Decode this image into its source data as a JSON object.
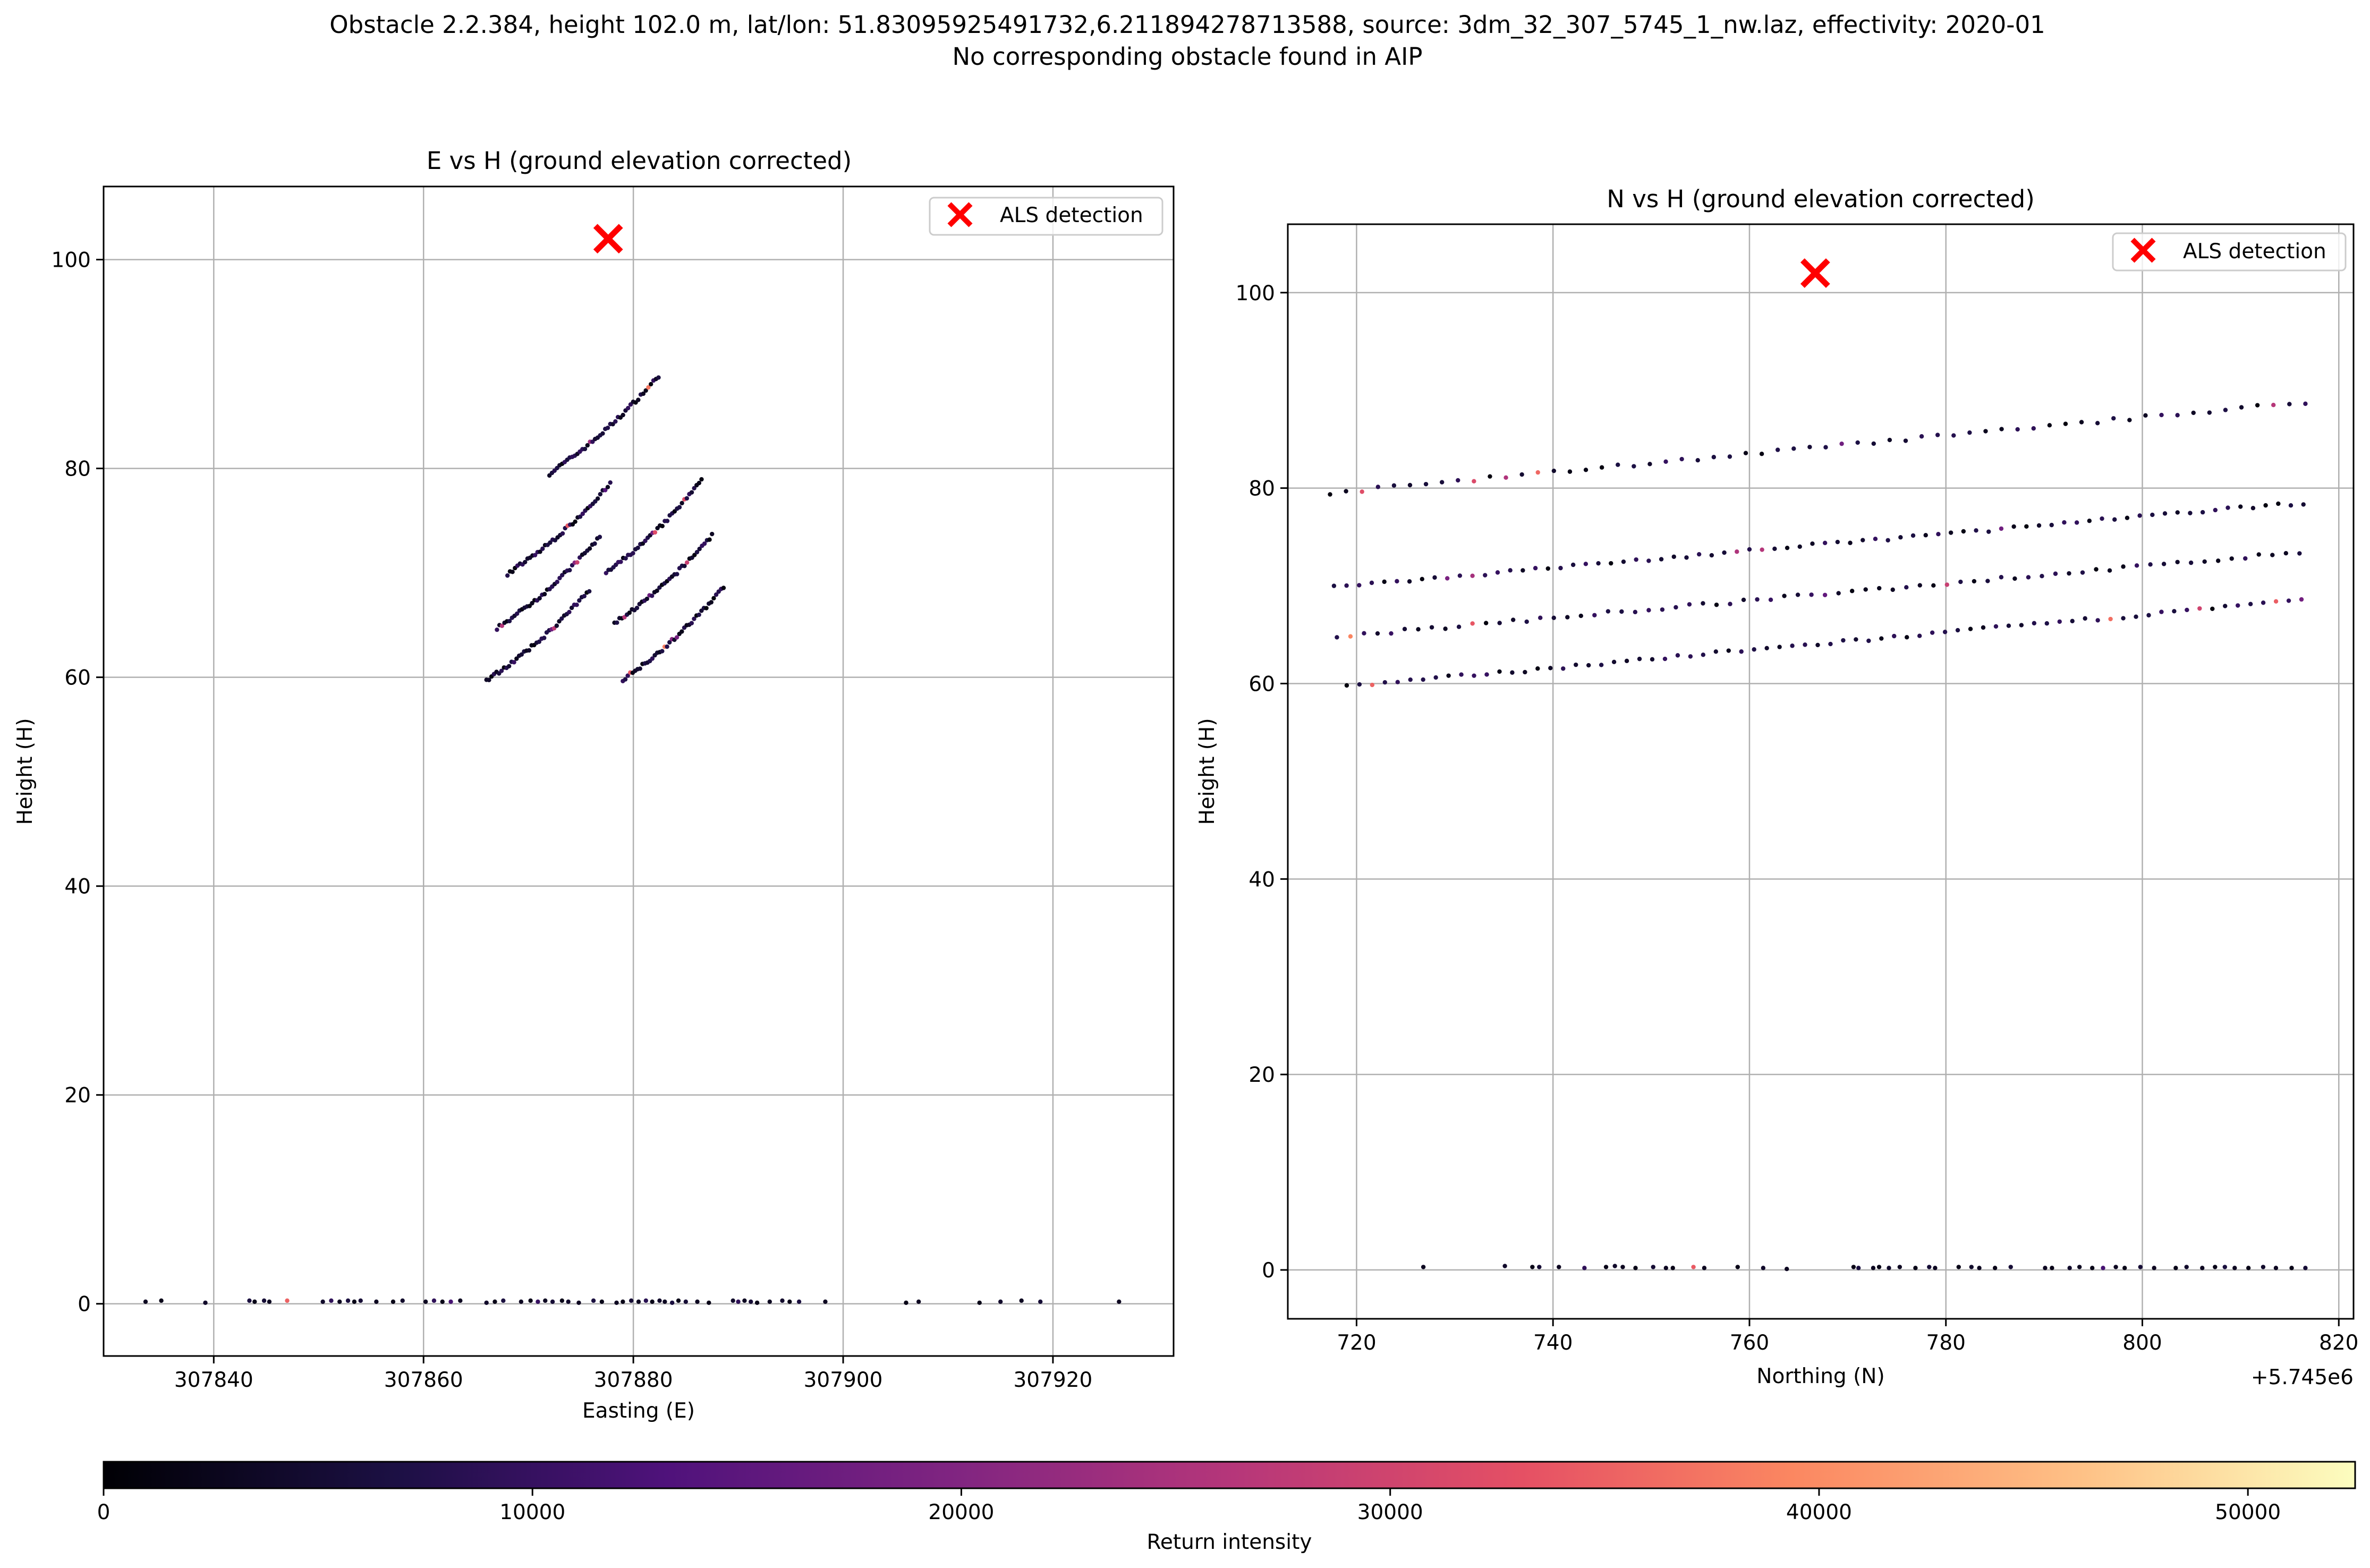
{
  "figure": {
    "suptitle_line1": "Obstacle 2.2.384, height 102.0 m, lat/lon: 51.83095925491732,6.211894278713588, source: 3dm_32_307_5745_1_nw.laz, effectivity: 2020-01",
    "suptitle_line2": "No corresponding obstacle found in AIP"
  },
  "colorbar": {
    "label": "Return intensity",
    "colormap": "magma",
    "range": [
      0,
      52500
    ],
    "ticks": [
      0,
      10000,
      20000,
      30000,
      40000,
      50000
    ],
    "tick_labels": [
      "0",
      "10000",
      "20000",
      "30000",
      "40000",
      "50000"
    ]
  },
  "chart_data": [
    {
      "type": "scatter",
      "title": "E vs H (ground elevation corrected)",
      "xlabel": "Easting (E)",
      "ylabel": "Height (H)",
      "xlim": [
        307829.5,
        307931.5
      ],
      "ylim": [
        -5,
        107
      ],
      "xticks": [
        307840,
        307860,
        307880,
        307900,
        307920
      ],
      "xtick_labels": [
        "307840",
        "307860",
        "307880",
        "307900",
        "307920"
      ],
      "yticks": [
        0,
        20,
        40,
        60,
        80,
        100
      ],
      "ytick_labels": [
        "0",
        "20",
        "40",
        "60",
        "80",
        "100"
      ],
      "offset_label": "",
      "grid": true,
      "legend": {
        "position": "top-right",
        "entries": [
          "ALS detection"
        ]
      },
      "detection": {
        "x": 307877.6,
        "y": 102.0,
        "color": "#ff0000",
        "marker": "x",
        "label": "ALS detection"
      },
      "point_color_scale": "Return intensity",
      "ground_points": [
        [
          307833.5,
          0.2,
          3000
        ],
        [
          307835.0,
          0.3,
          2000
        ],
        [
          307839.2,
          0.1,
          4000
        ],
        [
          307843.4,
          0.3,
          6000
        ],
        [
          307843.9,
          0.2,
          2000
        ],
        [
          307844.8,
          0.3,
          5000
        ],
        [
          307845.3,
          0.2,
          3000
        ],
        [
          307847.0,
          0.3,
          35000
        ],
        [
          307850.4,
          0.2,
          4000
        ],
        [
          307851.2,
          0.3,
          9000
        ],
        [
          307852.0,
          0.2,
          3000
        ],
        [
          307852.8,
          0.3,
          6000
        ],
        [
          307853.4,
          0.2,
          2000
        ],
        [
          307854.0,
          0.3,
          5000
        ],
        [
          307855.5,
          0.2,
          3000
        ],
        [
          307857.1,
          0.2,
          2000
        ],
        [
          307858.0,
          0.3,
          4000
        ],
        [
          307860.2,
          0.2,
          3000
        ],
        [
          307861.0,
          0.3,
          9000
        ],
        [
          307861.8,
          0.2,
          2000
        ],
        [
          307862.6,
          0.2,
          12000
        ],
        [
          307863.5,
          0.3,
          3000
        ],
        [
          307866.0,
          0.1,
          4000
        ],
        [
          307866.8,
          0.2,
          2000
        ],
        [
          307867.6,
          0.3,
          6000
        ],
        [
          307869.3,
          0.2,
          3000
        ],
        [
          307870.2,
          0.3,
          2000
        ],
        [
          307870.9,
          0.2,
          10000
        ],
        [
          307871.6,
          0.3,
          3000
        ],
        [
          307872.3,
          0.2,
          5000
        ],
        [
          307873.2,
          0.3,
          2000
        ],
        [
          307873.8,
          0.2,
          4000
        ],
        [
          307874.8,
          0.1,
          3000
        ],
        [
          307876.2,
          0.3,
          6000
        ],
        [
          307877.0,
          0.2,
          2000
        ],
        [
          307878.4,
          0.1,
          3000
        ],
        [
          307879.0,
          0.2,
          2000
        ],
        [
          307879.8,
          0.3,
          5000
        ],
        [
          307880.5,
          0.2,
          3000
        ],
        [
          307881.2,
          0.3,
          8000
        ],
        [
          307881.8,
          0.2,
          2000
        ],
        [
          307882.5,
          0.3,
          4000
        ],
        [
          307883.0,
          0.2,
          3000
        ],
        [
          307883.7,
          0.1,
          6000
        ],
        [
          307884.3,
          0.3,
          2000
        ],
        [
          307885.0,
          0.2,
          5000
        ],
        [
          307886.1,
          0.2,
          3000
        ],
        [
          307887.2,
          0.1,
          2000
        ],
        [
          307889.5,
          0.3,
          4000
        ],
        [
          307890.0,
          0.2,
          9000
        ],
        [
          307890.6,
          0.3,
          3000
        ],
        [
          307891.2,
          0.2,
          5000
        ],
        [
          307891.8,
          0.1,
          2000
        ],
        [
          307893.0,
          0.2,
          3000
        ],
        [
          307894.2,
          0.3,
          4000
        ],
        [
          307894.9,
          0.2,
          2000
        ],
        [
          307895.8,
          0.2,
          6000
        ],
        [
          307898.3,
          0.2,
          3000
        ],
        [
          307906.0,
          0.1,
          2000
        ],
        [
          307907.2,
          0.2,
          3000
        ],
        [
          307913.0,
          0.1,
          2000
        ],
        [
          307915.0,
          0.2,
          4000
        ],
        [
          307917.0,
          0.3,
          3000
        ],
        [
          307918.8,
          0.2,
          5000
        ],
        [
          307926.3,
          0.2,
          3000
        ]
      ],
      "tower_lines": [
        {
          "e_from": 307872.0,
          "e_to": 307882.4,
          "h_from": 79.5,
          "h_to": 88.8,
          "n": 44
        },
        {
          "e_from": 307868.0,
          "e_to": 307877.8,
          "h_from": 69.9,
          "h_to": 78.5,
          "n": 42
        },
        {
          "e_from": 307877.4,
          "e_to": 307886.5,
          "h_from": 70.0,
          "h_to": 78.8,
          "n": 40
        },
        {
          "e_from": 307867.0,
          "e_to": 307876.8,
          "h_from": 64.7,
          "h_to": 73.4,
          "n": 42
        },
        {
          "e_from": 307878.2,
          "e_to": 307887.5,
          "h_from": 65.2,
          "h_to": 73.6,
          "n": 40
        },
        {
          "e_from": 307866.0,
          "e_to": 307875.8,
          "h_from": 59.7,
          "h_to": 68.3,
          "n": 42
        },
        {
          "e_from": 307879.0,
          "e_to": 307888.6,
          "h_from": 59.8,
          "h_to": 68.6,
          "n": 42
        }
      ]
    },
    {
      "type": "scatter",
      "title": "N vs H (ground elevation corrected)",
      "xlabel": "Northing (N)",
      "ylabel": "Height (H)",
      "xlim": [
        5745713.0,
        5745821.5
      ],
      "ylim": [
        -5,
        107
      ],
      "xticks": [
        5745720,
        5745740,
        5745760,
        5745780,
        5745800,
        5745820
      ],
      "xtick_labels": [
        "720",
        "740",
        "760",
        "780",
        "800",
        "820"
      ],
      "yticks": [
        0,
        20,
        40,
        60,
        80,
        100
      ],
      "ytick_labels": [
        "0",
        "20",
        "40",
        "60",
        "80",
        "100"
      ],
      "offset_label": "+5.745e6",
      "grid": true,
      "legend": {
        "position": "top-right",
        "entries": [
          "ALS detection"
        ]
      },
      "detection": {
        "x": 5745766.7,
        "y": 102.0,
        "color": "#ff0000",
        "marker": "x",
        "label": "ALS detection"
      },
      "point_color_scale": "Return intensity",
      "ground_points": [
        [
          5745726.8,
          0.3,
          3000
        ],
        [
          5745735.1,
          0.4,
          4000
        ],
        [
          5745737.9,
          0.3,
          2000
        ],
        [
          5745738.6,
          0.3,
          5000
        ],
        [
          5745740.6,
          0.3,
          3000
        ],
        [
          5745743.2,
          0.2,
          9000
        ],
        [
          5745745.4,
          0.3,
          2000
        ],
        [
          5745746.3,
          0.4,
          4000
        ],
        [
          5745747.1,
          0.3,
          3000
        ],
        [
          5745748.4,
          0.2,
          2000
        ],
        [
          5745750.2,
          0.3,
          5000
        ],
        [
          5745751.5,
          0.2,
          3000
        ],
        [
          5745752.2,
          0.2,
          2000
        ],
        [
          5745754.3,
          0.3,
          34000
        ],
        [
          5745755.4,
          0.2,
          3000
        ],
        [
          5745758.8,
          0.3,
          2000
        ],
        [
          5745761.4,
          0.2,
          4000
        ],
        [
          5745763.8,
          0.1,
          3000
        ],
        [
          5745770.6,
          0.3,
          2000
        ],
        [
          5745771.1,
          0.2,
          6000
        ],
        [
          5745772.6,
          0.2,
          3000
        ],
        [
          5745773.2,
          0.3,
          2000
        ],
        [
          5745774.2,
          0.2,
          4000
        ],
        [
          5745775.3,
          0.3,
          3000
        ],
        [
          5745776.9,
          0.2,
          2000
        ],
        [
          5745778.3,
          0.3,
          5000
        ],
        [
          5745778.9,
          0.2,
          3000
        ],
        [
          5745781.3,
          0.3,
          2000
        ],
        [
          5745782.6,
          0.3,
          4000
        ],
        [
          5745783.4,
          0.2,
          3000
        ],
        [
          5745785.0,
          0.2,
          2000
        ],
        [
          5745786.6,
          0.3,
          5000
        ],
        [
          5745790.1,
          0.2,
          3000
        ],
        [
          5745790.8,
          0.2,
          2000
        ],
        [
          5745792.6,
          0.2,
          4000
        ],
        [
          5745793.6,
          0.3,
          3000
        ],
        [
          5745794.9,
          0.2,
          2000
        ],
        [
          5745796.0,
          0.2,
          12000
        ],
        [
          5745797.3,
          0.3,
          3000
        ],
        [
          5745798.2,
          0.2,
          2000
        ],
        [
          5745799.8,
          0.3,
          5000
        ],
        [
          5745801.2,
          0.2,
          3000
        ],
        [
          5745803.4,
          0.2,
          2000
        ],
        [
          5745804.5,
          0.3,
          4000
        ],
        [
          5745806.1,
          0.2,
          3000
        ],
        [
          5745807.4,
          0.3,
          2000
        ],
        [
          5745808.4,
          0.3,
          6000
        ],
        [
          5745809.4,
          0.2,
          3000
        ],
        [
          5745810.8,
          0.2,
          2000
        ],
        [
          5745812.3,
          0.3,
          4000
        ],
        [
          5745813.6,
          0.2,
          3000
        ],
        [
          5745815.2,
          0.2,
          2000
        ],
        [
          5745816.6,
          0.2,
          5000
        ]
      ],
      "tower_lines": [
        {
          "e_from": 5745717.3,
          "e_to": 5745816.6,
          "h_from": 79.5,
          "h_to": 88.8,
          "n": 62
        },
        {
          "e_from": 5745717.7,
          "e_to": 5745816.4,
          "h_from": 69.9,
          "h_to": 78.5,
          "n": 78
        },
        {
          "e_from": 5745718.0,
          "e_to": 5745816.0,
          "h_from": 64.8,
          "h_to": 73.4,
          "n": 72
        },
        {
          "e_from": 5745719.0,
          "e_to": 5745816.2,
          "h_from": 59.7,
          "h_to": 68.5,
          "n": 76
        }
      ]
    }
  ]
}
